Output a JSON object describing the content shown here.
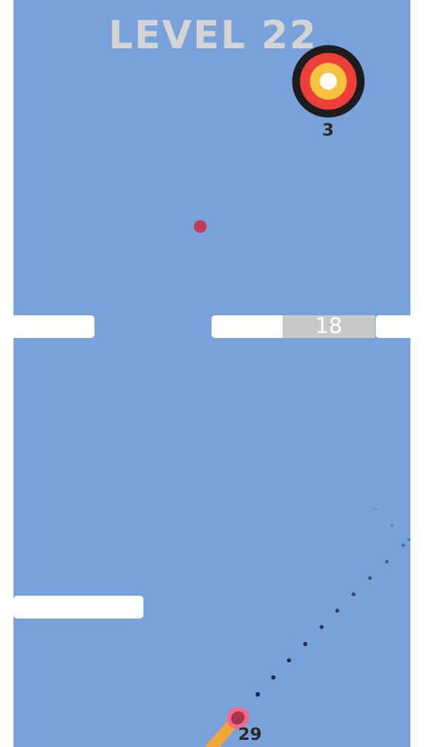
{
  "hud": {
    "level_label": "LEVEL 22"
  },
  "target": {
    "shots_remaining": "3",
    "rings": [
      "#1d1d1d",
      "#ee3e3a",
      "#f4c23c",
      "#ffffff"
    ]
  },
  "board": {
    "background_color": "#7aa2da",
    "breakable_block_hits": "18",
    "ball_color": "#c23a55"
  },
  "cannon": {
    "balls_remaining": "29",
    "barrel_color": "#f4a53a",
    "muzzle_color": "#f06c86"
  }
}
